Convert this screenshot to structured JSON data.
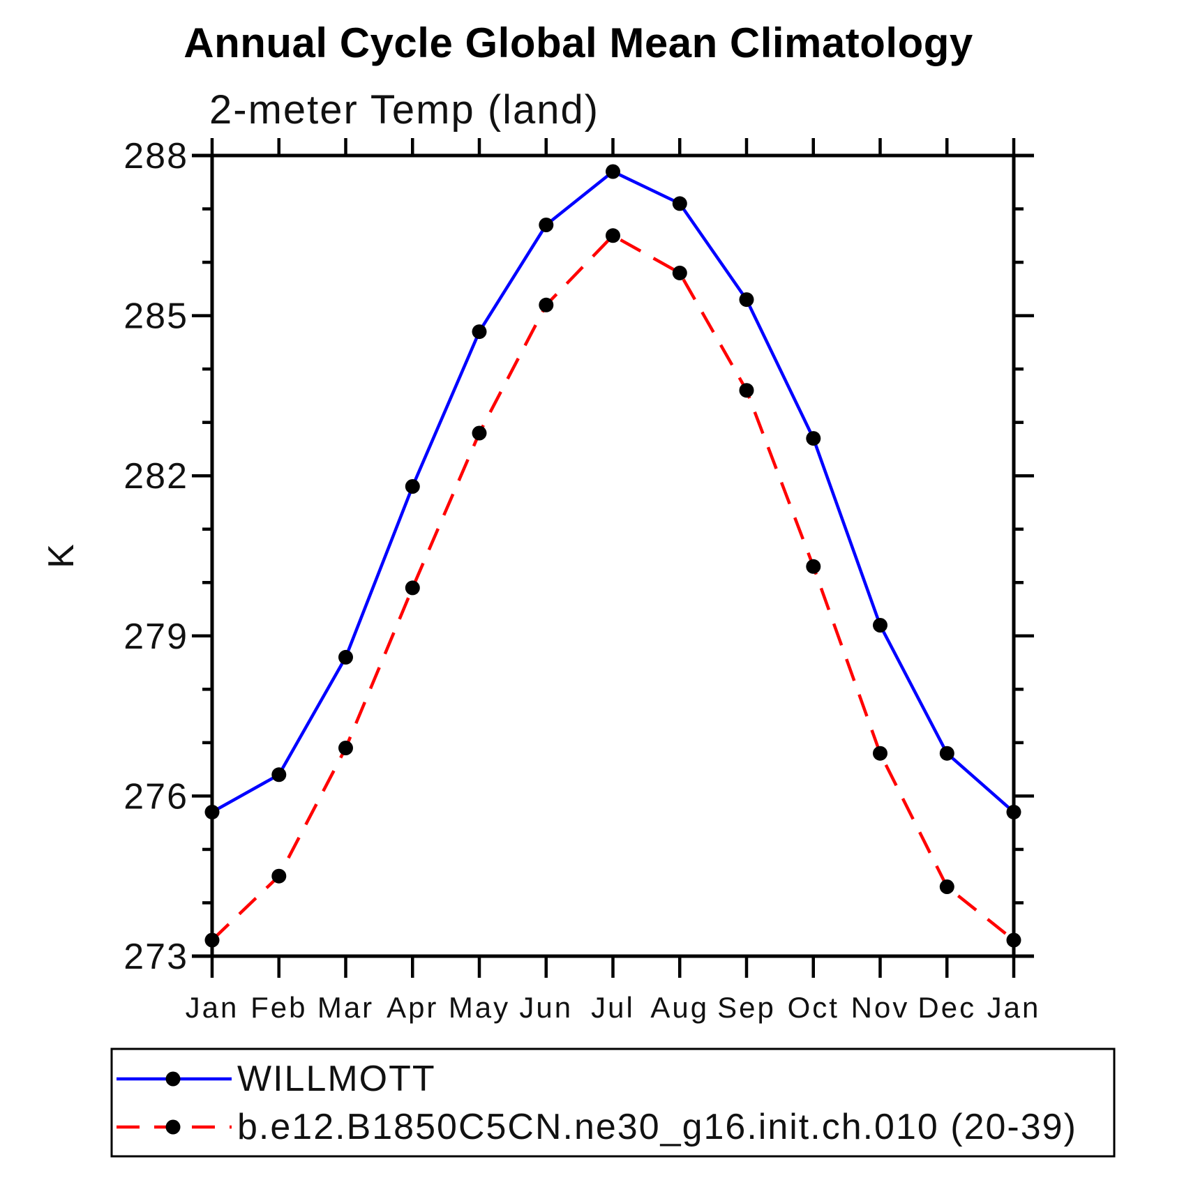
{
  "title": "Annual Cycle Global Mean Climatology",
  "subtitle": "2-meter Temp (land)",
  "axis": {
    "y_unit": "K"
  },
  "legend": {
    "entries": [
      {
        "label": "WILLMOTT",
        "color": "#0000ff",
        "style": "solid",
        "marker_color": "#000000"
      },
      {
        "label": "b.e12.B1850C5CN.ne30_g16.init.ch.010 (20-39)",
        "color": "#ff0000",
        "style": "dashed",
        "marker_color": "#000000"
      }
    ]
  },
  "chart_data": {
    "type": "line",
    "categories": [
      "Jan",
      "Feb",
      "Mar",
      "Apr",
      "May",
      "Jun",
      "Jul",
      "Aug",
      "Sep",
      "Oct",
      "Nov",
      "Dec",
      "Jan"
    ],
    "series": [
      {
        "name": "WILLMOTT",
        "color": "#0000ff",
        "style": "solid",
        "marker": "circle",
        "values": [
          275.7,
          276.4,
          278.6,
          281.8,
          284.7,
          286.7,
          287.7,
          287.1,
          285.3,
          282.7,
          279.2,
          276.8,
          275.7
        ]
      },
      {
        "name": "b.e12.B1850C5CN.ne30_g16.init.ch.010 (20-39)",
        "color": "#ff0000",
        "style": "dashed",
        "marker": "circle",
        "values": [
          273.3,
          274.5,
          276.9,
          279.9,
          282.8,
          285.2,
          286.5,
          285.8,
          283.6,
          280.3,
          276.8,
          274.3,
          273.3
        ]
      }
    ],
    "title": "Annual Cycle Global Mean Climatology",
    "subtitle": "2-meter Temp (land)",
    "xlabel": "",
    "ylabel": "K",
    "ylim": [
      273,
      288
    ],
    "yticks_major": [
      273,
      276,
      279,
      282,
      285,
      288
    ],
    "ytick_minor_step": 1,
    "grid": false,
    "legend_position": "bottom",
    "marker_color": "#000000",
    "axis_color": "#000000"
  }
}
